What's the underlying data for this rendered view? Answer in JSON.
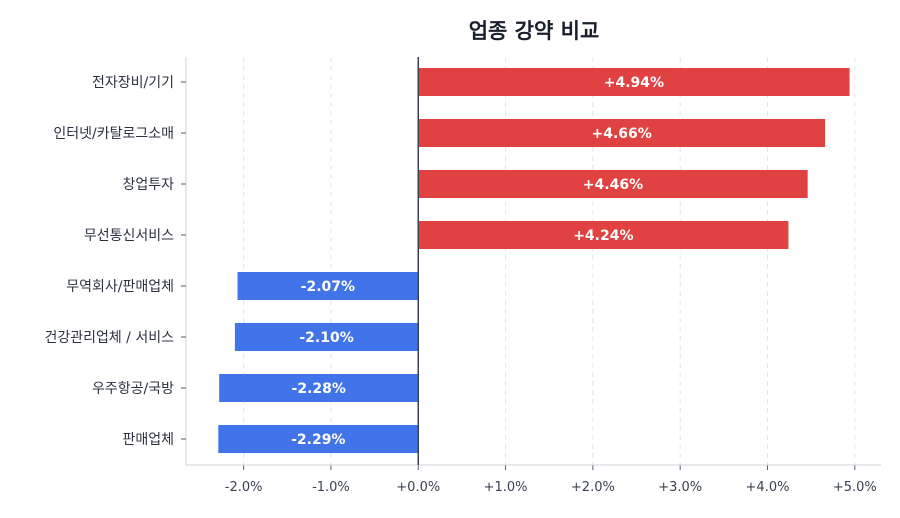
{
  "chart_data": {
    "type": "bar",
    "orientation": "horizontal",
    "title": "업종 강약 비교",
    "xlabel": "",
    "ylabel": "",
    "categories": [
      "전자장비/기기",
      "인터넷/카탈로그소매",
      "창업투자",
      "무선통신서비스",
      "무역회사/판매업체",
      "건강관리업체 / 서비스",
      "우주항공/국방",
      "판매업체"
    ],
    "values": [
      4.94,
      4.66,
      4.46,
      4.24,
      -2.07,
      -2.1,
      -2.28,
      -2.29
    ],
    "data_labels": [
      "+4.94%",
      "+4.66%",
      "+4.46%",
      "+4.24%",
      "-2.07%",
      "-2.10%",
      "-2.28%",
      "-2.29%"
    ],
    "xlim": [
      -2.66,
      5.3
    ],
    "x_ticks": [
      -2,
      -1,
      0,
      1,
      2,
      3,
      4,
      5
    ],
    "x_tick_labels": [
      "-2.0%",
      "-1.0%",
      "+0.0%",
      "+1.0%",
      "+2.0%",
      "+3.0%",
      "+4.0%",
      "+5.0%"
    ],
    "grid": "vertical dashed",
    "colors": {
      "positive": "#e04141",
      "negative": "#4174e8",
      "zero_line": "#3a4150"
    }
  }
}
